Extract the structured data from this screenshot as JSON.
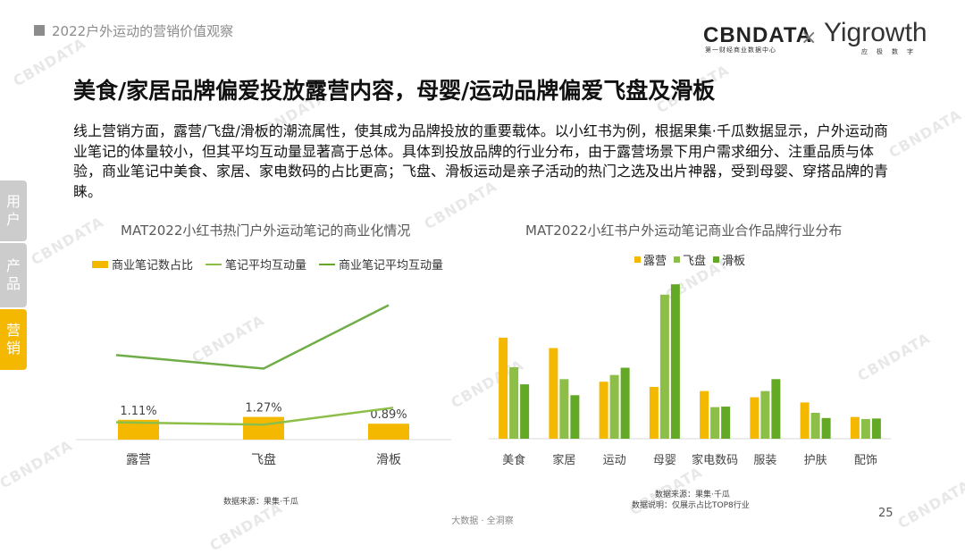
{
  "header": {
    "section_title": "2022户外运动的营销价值观察",
    "logo_cbn": "CBNDATA",
    "logo_cbn_sub": "第一财经商业数据中心",
    "logo_times": "×",
    "logo_yi": "Yigrowth",
    "logo_yi_sub": "应极数字"
  },
  "title": "美食/家居品牌偏爱投放露营内容，母婴/运动品牌偏爱飞盘及滑板",
  "paragraph": "线上营销方面，露营/飞盘/滑板的潮流属性，使其成为品牌投放的重要载体。以小红书为例，根据果集·千瓜数据显示，户外运动商业笔记的体量较小，但其平均互动量显著高于总体。具体到投放品牌的行业分布，由于露营场景下用户需求细分、注重品质与体验，商业笔记中美食、家居、家电数码的占比更高；飞盘、滑板运动是亲子活动的热门之选及出片神器，受到母婴、穿搭品牌的青睐。",
  "side_tabs": [
    {
      "label": "用户",
      "active": false
    },
    {
      "label": "产品",
      "active": false
    },
    {
      "label": "营销",
      "active": true
    }
  ],
  "colors": {
    "accent": "#f5b800",
    "bar_yellow": "#f5b800",
    "line_green": "#70ad47",
    "green_light": "#8dbf48",
    "green_dark": "#63a925",
    "gray_tab": "#cccccc"
  },
  "chart_data": [
    {
      "type": "bar",
      "title": "MAT2022小红书热门户外运动笔记的商业化情况",
      "categories": [
        "露营",
        "飞盘",
        "滑板"
      ],
      "series": [
        {
          "name": "商业笔记数占比",
          "kind": "bar",
          "color": "#f5b800",
          "values": [
            1.11,
            1.27,
            0.89
          ],
          "labels": [
            "1.11%",
            "1.27%",
            "0.89%"
          ]
        },
        {
          "name": "笔记平均互动量",
          "kind": "line",
          "color": "#70ad47",
          "values": [
            0.45,
            0.39,
            0.83
          ]
        },
        {
          "name": "商业笔记平均互动量",
          "kind": "line",
          "color": "#70ad47",
          "values": [
            2.2,
            1.85,
            3.5
          ]
        }
      ],
      "legend_position": "top",
      "grid": false,
      "source": "数据来源：果集·千瓜"
    },
    {
      "type": "bar",
      "title": "MAT2022小红书户外运动笔记商业合作品牌行业分布",
      "categories": [
        "美食",
        "家居",
        "运动",
        "母婴",
        "家电数码",
        "服装",
        "护肤",
        "配饰"
      ],
      "series": [
        {
          "name": "露营",
          "color": "#f5b800",
          "values": [
            19.5,
            17.5,
            11,
            10,
            9.2,
            8,
            7,
            4.2
          ]
        },
        {
          "name": "飞盘",
          "color": "#8dbf48",
          "values": [
            13.8,
            11.5,
            12.3,
            27.8,
            6.1,
            9.2,
            5,
            3.8
          ]
        },
        {
          "name": "滑板",
          "color": "#63a925",
          "values": [
            10.5,
            8.4,
            13.7,
            29.8,
            6.2,
            11.5,
            4,
            3.9
          ]
        }
      ],
      "legend_position": "top",
      "grid": false,
      "source": "数据来源：果集·千瓜",
      "note": "数据说明：仅展示占比TOP8行业"
    }
  ],
  "footer": "大数据 · 全洞察",
  "page_number": "25",
  "watermark": "CBNDATA"
}
